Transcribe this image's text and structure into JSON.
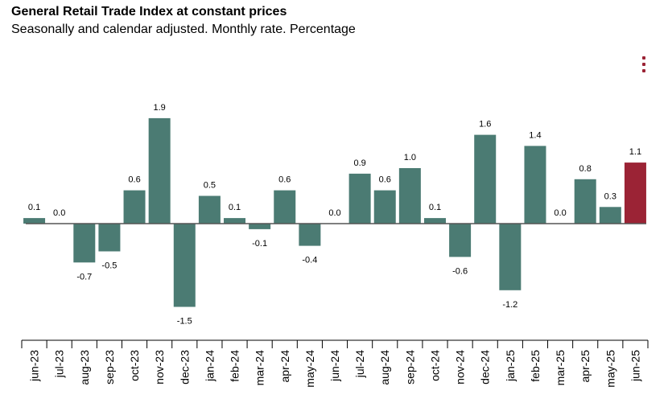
{
  "title": "General Retail Trade Index at constant prices",
  "subtitle": "Seasonally and calendar adjusted. Monthly rate. Percentage",
  "menu": {
    "icon": "vertical-dots-icon"
  },
  "colors": {
    "bar": "#4b7b73",
    "highlight": "#9b2335",
    "axis": "#000000"
  },
  "chart_data": {
    "type": "bar",
    "title": "General Retail Trade Index at constant prices",
    "subtitle": "Seasonally and calendar adjusted. Monthly rate. Percentage",
    "xlabel": "",
    "ylabel": "",
    "categories": [
      "jun-23",
      "jul-23",
      "aug-23",
      "sep-23",
      "oct-23",
      "nov-23",
      "dec-23",
      "jan-24",
      "feb-24",
      "mar-24",
      "apr-24",
      "may-24",
      "jun-24",
      "jul-24",
      "aug-24",
      "sep-24",
      "oct-24",
      "nov-24",
      "dec-24",
      "jan-25",
      "feb-25",
      "mar-25",
      "apr-25",
      "may-25",
      "jun-25"
    ],
    "values": [
      0.1,
      0.0,
      -0.7,
      -0.5,
      0.6,
      1.9,
      -1.5,
      0.5,
      0.1,
      -0.1,
      0.6,
      -0.4,
      0.0,
      0.9,
      0.6,
      1.0,
      0.1,
      -0.6,
      1.6,
      -1.2,
      1.4,
      0.0,
      0.8,
      0.3,
      1.1
    ],
    "value_labels": [
      "0.1",
      "0.0",
      "-0.7",
      "-0.5",
      "0.6",
      "1.9",
      "-1.5",
      "0.5",
      "0.1",
      "-0.1",
      "0.6",
      "-0.4",
      "0.0",
      "0.9",
      "0.6",
      "1.0",
      "0.1",
      "-0.6",
      "1.6",
      "-1.2",
      "1.4",
      "0.0",
      "0.8",
      "0.3",
      "1.1"
    ],
    "highlight_index": 24,
    "ylim": [
      -1.5,
      1.9
    ],
    "grid": false,
    "legend": "none"
  }
}
